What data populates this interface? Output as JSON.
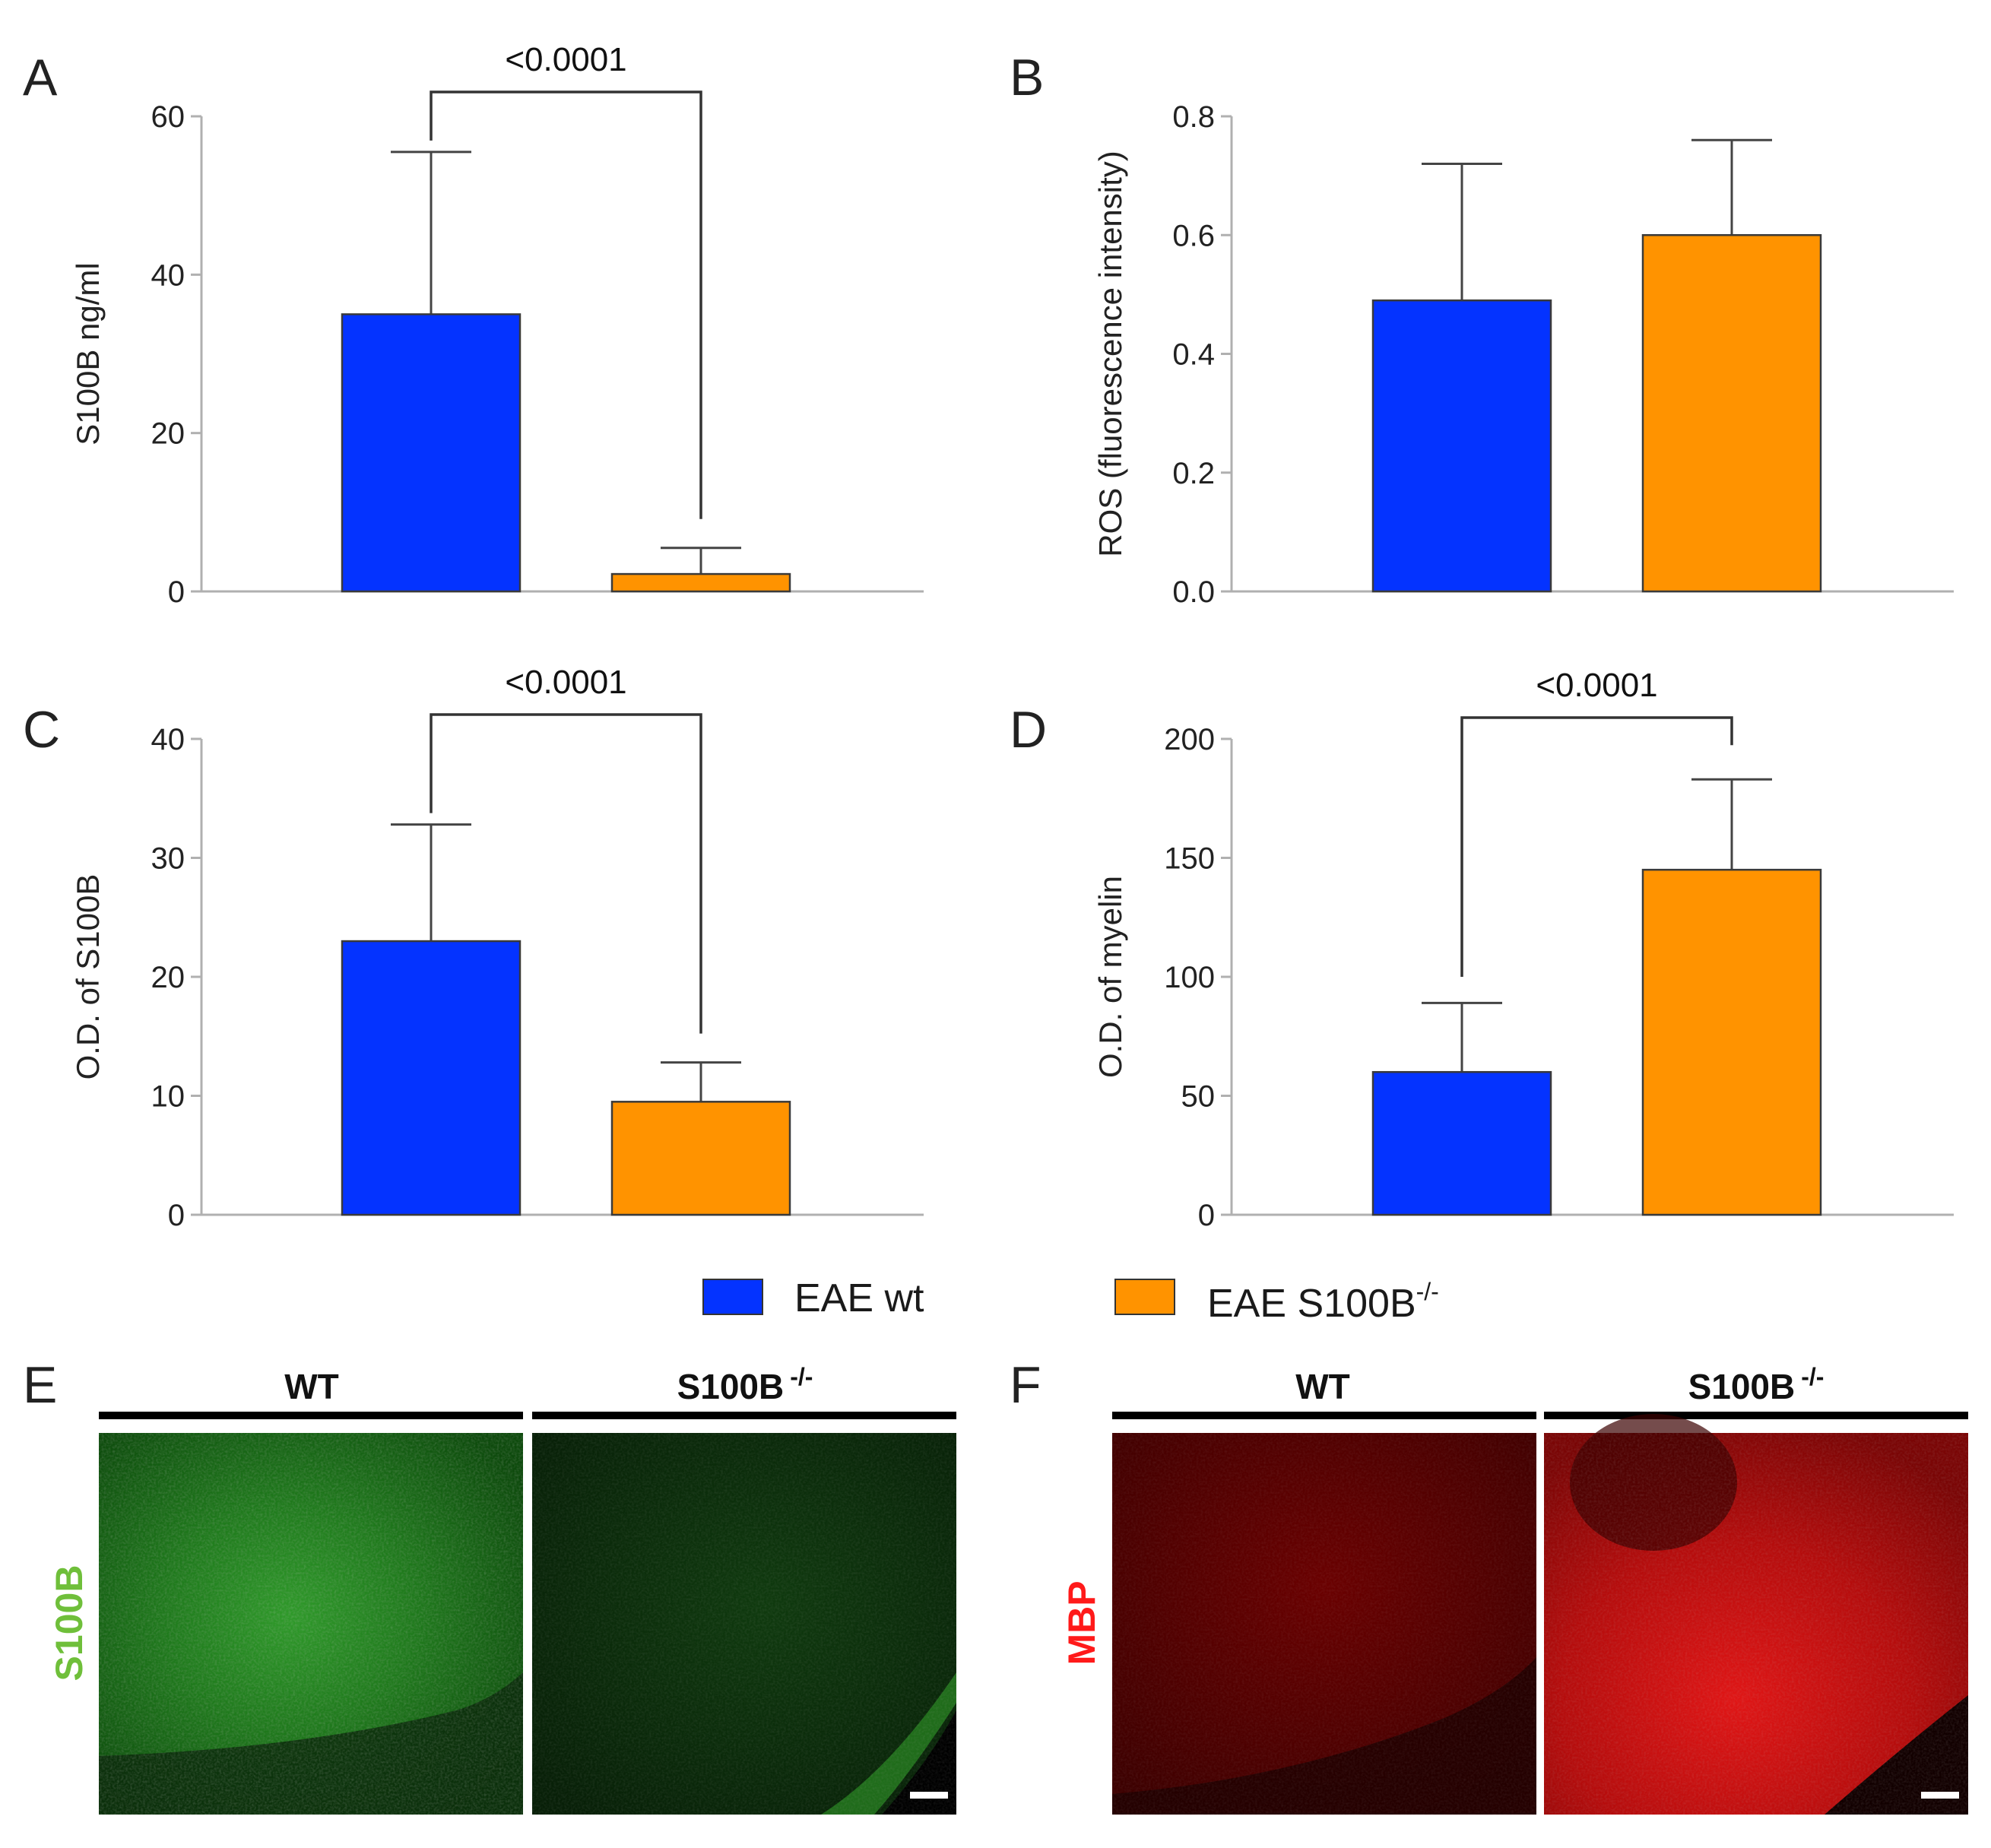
{
  "colors": {
    "wt": "#0433ff",
    "ko": "#ff9300",
    "s100b_stain": "#6fbf3a",
    "mbp_stain": "#ff1a1a"
  },
  "legend": {
    "items": [
      {
        "label": "EAE wt",
        "color": "#0433ff"
      },
      {
        "label": "EAE S100B",
        "sup": "-/-",
        "color": "#ff9300"
      }
    ]
  },
  "chart_data": [
    {
      "panel": "A",
      "type": "bar",
      "ylabel": "S100B ng/ml",
      "ylim": [
        0,
        60
      ],
      "yticks": [
        0,
        20,
        40,
        60
      ],
      "tick_decimals": 0,
      "series": [
        {
          "name": "EAE wt",
          "value": 35,
          "error": 20.5
        },
        {
          "name": "EAE S100B-/-",
          "value": 2.2,
          "error": 3.3
        }
      ],
      "significance": "<0.0001"
    },
    {
      "panel": "B",
      "type": "bar",
      "ylabel": "ROS (fluorescence intensity)",
      "ylim": [
        0,
        0.8
      ],
      "yticks": [
        0,
        0.2,
        0.4,
        0.6,
        0.8
      ],
      "tick_decimals": 1,
      "series": [
        {
          "name": "EAE wt",
          "value": 0.49,
          "error": 0.23
        },
        {
          "name": "EAE S100B-/-",
          "value": 0.6,
          "error": 0.16
        }
      ],
      "significance": ""
    },
    {
      "panel": "C",
      "type": "bar",
      "ylabel": "O.D. of S100B",
      "ylim": [
        0,
        40
      ],
      "yticks": [
        0,
        10,
        20,
        30,
        40
      ],
      "tick_decimals": 0,
      "series": [
        {
          "name": "EAE wt",
          "value": 23,
          "error": 9.8
        },
        {
          "name": "EAE S100B-/-",
          "value": 9.5,
          "error": 3.3
        }
      ],
      "significance": "<0.0001"
    },
    {
      "panel": "D",
      "type": "bar",
      "ylabel": "O.D. of myelin",
      "ylim": [
        0,
        200
      ],
      "yticks": [
        0,
        50,
        100,
        150,
        200
      ],
      "tick_decimals": 0,
      "series": [
        {
          "name": "EAE wt",
          "value": 60,
          "error": 29
        },
        {
          "name": "EAE S100B-/-",
          "value": 145,
          "error": 38
        }
      ],
      "significance": "<0.0001"
    }
  ],
  "micrographs": [
    {
      "panel": "E",
      "stain": "S100B",
      "columns": [
        {
          "label": "WT",
          "sup": ""
        },
        {
          "label": "S100B",
          "sup": "-/-"
        }
      ]
    },
    {
      "panel": "F",
      "stain": "MBP",
      "columns": [
        {
          "label": "WT",
          "sup": ""
        },
        {
          "label": "S100B",
          "sup": "-/-"
        }
      ]
    }
  ]
}
